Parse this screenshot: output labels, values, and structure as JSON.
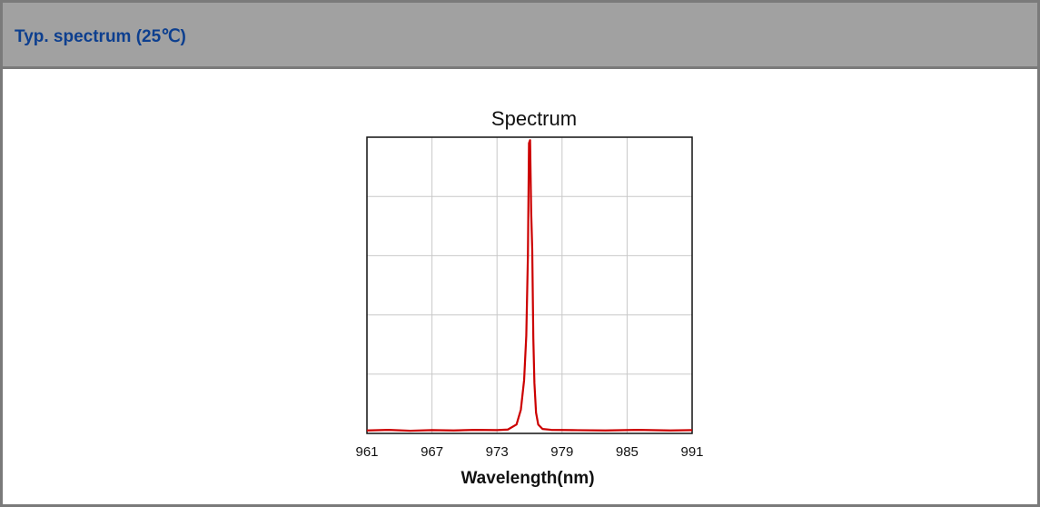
{
  "header": {
    "title": "Typ. spectrum (25℃)"
  },
  "colors": {
    "header_background": "#a1a1a1",
    "header_text": "#0d3f8f",
    "border": "#7a7a7a",
    "series": "#cc0000",
    "grid": "#c8c8c8"
  },
  "chart_data": {
    "type": "line",
    "title": "Spectrum",
    "xlabel": "Wavelength(nm)",
    "ylabel": "",
    "xlim": [
      961,
      991
    ],
    "ylim": [
      0,
      1
    ],
    "x_ticks": [
      "961",
      "967",
      "973",
      "979",
      "985",
      "991"
    ],
    "grid": true,
    "legend": "none",
    "series": [
      {
        "color": "#cc0000",
        "x": [
          961,
          963,
          965,
          967,
          969,
          971,
          973,
          974,
          974.8,
          975.2,
          975.5,
          975.7,
          975.85,
          975.95,
          976.05,
          976.15,
          976.25,
          976.35,
          976.45,
          976.6,
          976.8,
          977.2,
          978,
          980,
          983,
          986,
          989,
          991
        ],
        "y": [
          0.01,
          0.012,
          0.009,
          0.011,
          0.01,
          0.012,
          0.011,
          0.013,
          0.03,
          0.08,
          0.18,
          0.33,
          0.6,
          0.98,
          0.99,
          0.75,
          0.62,
          0.32,
          0.17,
          0.07,
          0.03,
          0.015,
          0.012,
          0.011,
          0.01,
          0.012,
          0.01,
          0.011
        ]
      }
    ]
  }
}
